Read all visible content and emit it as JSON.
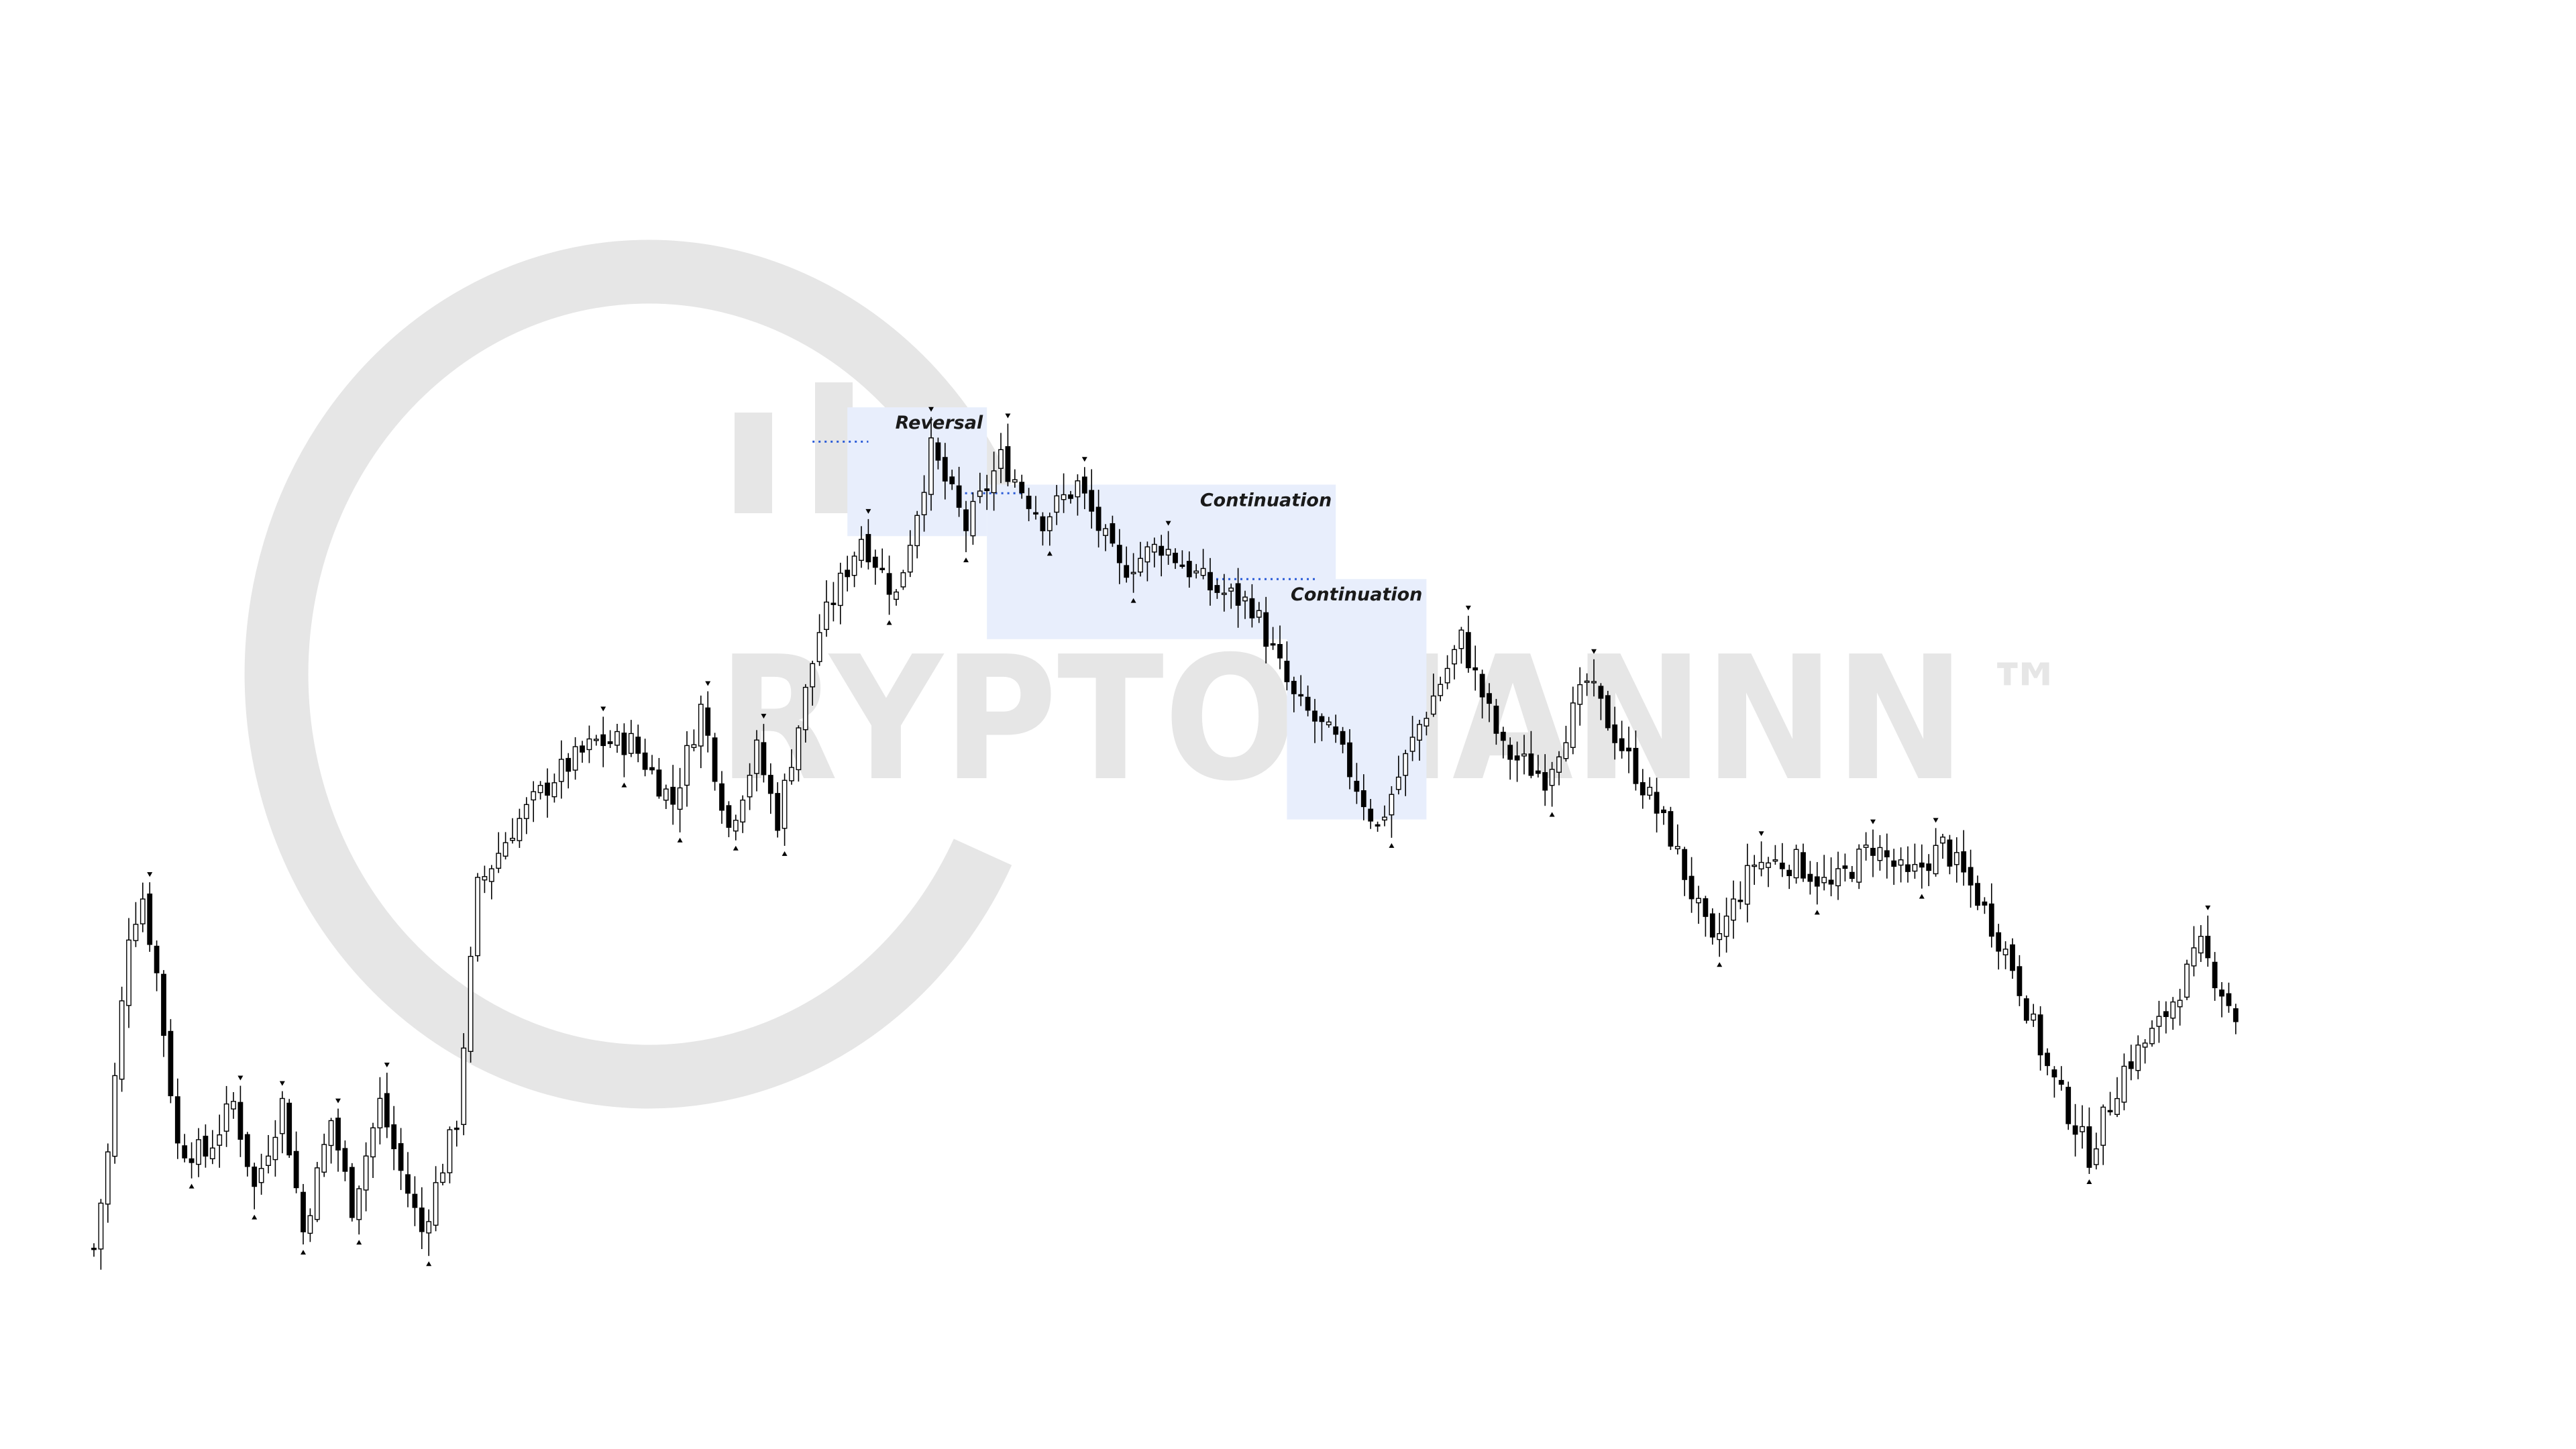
{
  "watermark": {
    "text": "RYPTOMANNN",
    "trademark": "™",
    "color": "#e6e6e6"
  },
  "chart_data": {
    "type": "candlestick",
    "title": "",
    "xlabel": "",
    "ylabel": "",
    "grid": false,
    "legend": "none",
    "ylim": [
      0,
      100
    ],
    "colors": {
      "bull_body": "#ffffff",
      "bear_body": "#000000",
      "outline": "#000000",
      "zone_fill": "#e8eefc",
      "level_line": "#2a5bd7"
    },
    "anchors": [
      [
        0,
        3
      ],
      [
        2,
        14
      ],
      [
        5,
        40
      ],
      [
        7,
        44
      ],
      [
        9,
        35
      ],
      [
        12,
        15
      ],
      [
        16,
        14
      ],
      [
        20,
        20
      ],
      [
        23,
        10
      ],
      [
        27,
        20
      ],
      [
        30,
        5
      ],
      [
        34,
        18
      ],
      [
        37,
        8
      ],
      [
        41,
        20
      ],
      [
        44,
        12
      ],
      [
        47,
        5
      ],
      [
        52,
        18
      ],
      [
        55,
        45
      ],
      [
        60,
        52
      ],
      [
        66,
        58
      ],
      [
        72,
        62
      ],
      [
        77,
        62
      ],
      [
        83,
        55
      ],
      [
        87,
        66
      ],
      [
        91,
        52
      ],
      [
        95,
        61
      ],
      [
        98,
        53
      ],
      [
        104,
        75
      ],
      [
        110,
        86
      ],
      [
        115,
        79
      ],
      [
        120,
        96
      ],
      [
        125,
        87
      ],
      [
        130,
        95
      ],
      [
        136,
        88
      ],
      [
        141,
        92
      ],
      [
        147,
        82
      ],
      [
        153,
        85
      ],
      [
        160,
        80
      ],
      [
        166,
        78
      ],
      [
        172,
        67
      ],
      [
        178,
        62
      ],
      [
        184,
        52
      ],
      [
        190,
        64
      ],
      [
        196,
        74
      ],
      [
        202,
        61
      ],
      [
        208,
        58
      ],
      [
        214,
        69
      ],
      [
        220,
        60
      ],
      [
        226,
        51
      ],
      [
        232,
        38
      ],
      [
        238,
        48
      ],
      [
        244,
        48
      ],
      [
        249,
        45
      ],
      [
        255,
        50
      ],
      [
        260,
        46
      ],
      [
        265,
        50
      ],
      [
        270,
        44
      ],
      [
        275,
        36
      ],
      [
        280,
        24
      ],
      [
        286,
        14
      ],
      [
        291,
        24
      ],
      [
        296,
        29
      ],
      [
        302,
        38
      ],
      [
        307,
        30
      ]
    ],
    "candles": [],
    "zones": [
      {
        "label": "Reversal",
        "x_start": 108,
        "x_end": 128,
        "y_top": 101,
        "y_bottom": 86
      },
      {
        "label": "Continuation",
        "x_start": 128,
        "x_end": 178,
        "y_top": 92,
        "y_bottom": 74
      },
      {
        "label": "Continuation",
        "x_start": 171,
        "x_end": 191,
        "y_top": 81,
        "y_bottom": 53
      }
    ],
    "levels": [
      {
        "x_start": 103,
        "x_end": 111,
        "y": 97
      },
      {
        "x_start": 124,
        "x_end": 133,
        "y": 91
      },
      {
        "x_start": 160,
        "x_end": 175,
        "y": 81
      }
    ],
    "swing_markers": "small triangles above swing highs and below swing lows"
  }
}
